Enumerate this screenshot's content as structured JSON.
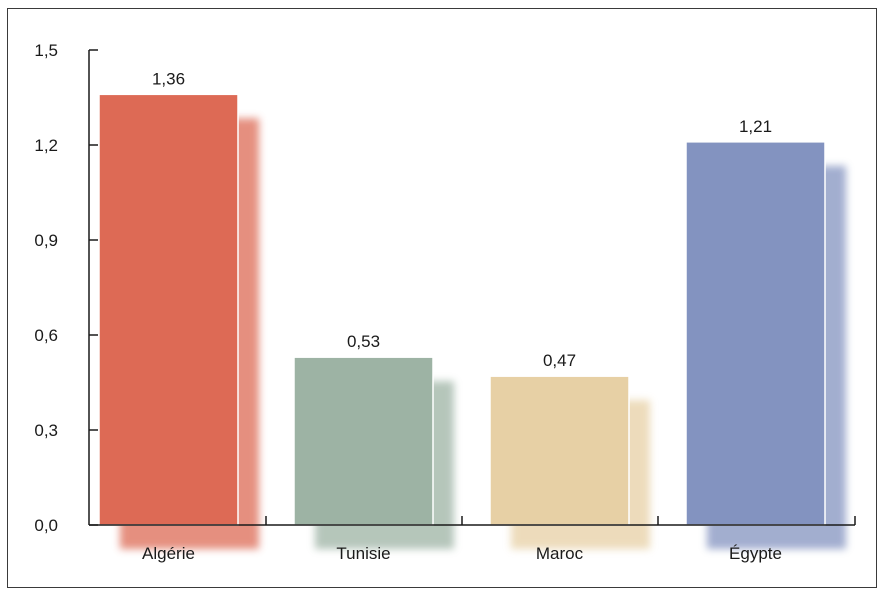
{
  "chart_data": {
    "type": "bar",
    "categories": [
      "Algérie",
      "Tunisie",
      "Maroc",
      "Égypte"
    ],
    "values": [
      1.36,
      0.53,
      0.47,
      1.21
    ],
    "value_labels": [
      "1,36",
      "0,53",
      "0,47",
      "1,21"
    ],
    "colors": [
      "#dd6a55",
      "#9db3a4",
      "#e7d0a5",
      "#8393c0"
    ],
    "ylim": [
      0,
      1.5
    ],
    "yticks": [
      0,
      0.3,
      0.6,
      0.9,
      1.2,
      1.5
    ],
    "ytick_labels": [
      "0,0",
      "0,3",
      "0,6",
      "0,9",
      "1,2",
      "1,5"
    ],
    "title": "",
    "xlabel": "",
    "ylabel": "",
    "grid": false,
    "legend": "none"
  }
}
